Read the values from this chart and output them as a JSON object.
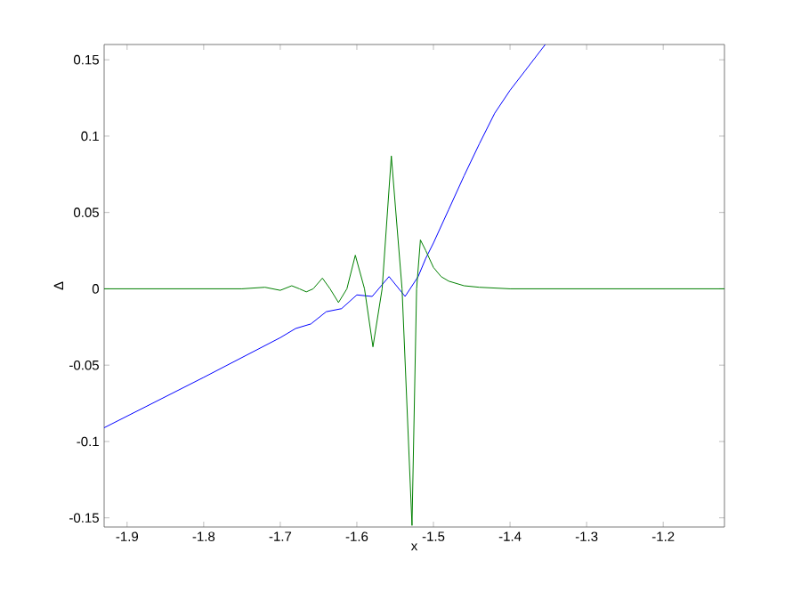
{
  "chart_data": {
    "type": "line",
    "xlabel": "x",
    "ylabel": "Δ",
    "xlim": [
      -1.93,
      -1.12
    ],
    "ylim": [
      -0.156,
      0.16
    ],
    "xticks": [
      -1.9,
      -1.8,
      -1.7,
      -1.6,
      -1.5,
      -1.4,
      -1.3,
      -1.2
    ],
    "yticks": [
      -0.15,
      -0.1,
      -0.05,
      0,
      0.05,
      0.1,
      0.15
    ],
    "grid": false,
    "marker": "none",
    "line_style": "solid",
    "series": [
      {
        "color": "#0000ff",
        "x": [
          -1.93,
          -1.8,
          -1.7,
          -1.68,
          -1.66,
          -1.64,
          -1.62,
          -1.6,
          -1.58,
          -1.558,
          -1.537,
          -1.52,
          -1.51,
          -1.5,
          -1.48,
          -1.46,
          -1.44,
          -1.42,
          -1.4,
          -1.38,
          -1.354
        ],
        "values": [
          -0.091,
          -0.058,
          -0.032,
          -0.026,
          -0.023,
          -0.015,
          -0.013,
          -0.004,
          -0.005,
          0.008,
          -0.005,
          0.008,
          0.02,
          0.03,
          0.052,
          0.074,
          0.095,
          0.115,
          0.13,
          0.143,
          0.16
        ]
      },
      {
        "color": "#008000",
        "x": [
          -1.93,
          -1.75,
          -1.72,
          -1.7,
          -1.685,
          -1.675,
          -1.666,
          -1.657,
          -1.645,
          -1.635,
          -1.624,
          -1.613,
          -1.602,
          -1.59,
          -1.579,
          -1.567,
          -1.555,
          -1.541,
          -1.528,
          -1.522,
          -1.517,
          -1.51,
          -1.5,
          -1.49,
          -1.48,
          -1.46,
          -1.44,
          -1.4,
          -1.12
        ],
        "values": [
          0,
          0,
          0.001,
          -0.001,
          0.002,
          0,
          -0.002,
          0,
          0.007,
          0,
          -0.009,
          0,
          0.022,
          0,
          -0.038,
          0,
          0.087,
          0,
          -0.155,
          0,
          0.032,
          0.025,
          0.014,
          0.008,
          0.005,
          0.002,
          0.001,
          0,
          0
        ]
      }
    ]
  }
}
